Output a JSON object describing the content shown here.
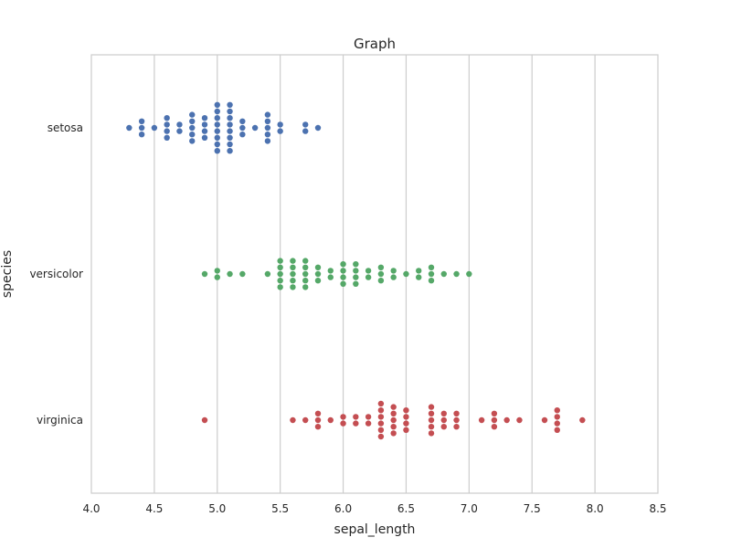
{
  "chart_data": {
    "type": "scatter",
    "subtype": "swarm",
    "title": "Graph",
    "xlabel": "sepal_length",
    "ylabel": "species",
    "xlim": [
      4.0,
      8.5
    ],
    "xticks": [
      "4.0",
      "4.5",
      "5.0",
      "5.5",
      "6.0",
      "6.5",
      "7.0",
      "7.5",
      "8.0",
      "8.5"
    ],
    "categories": [
      "setosa",
      "versicolor",
      "virginica"
    ],
    "grid": "vertical",
    "legend": "none",
    "series": [
      {
        "category": "setosa",
        "color": "#4c72b0",
        "values": [
          [
            4.3,
            1
          ],
          [
            4.4,
            3
          ],
          [
            4.5,
            1
          ],
          [
            4.6,
            4
          ],
          [
            4.7,
            2
          ],
          [
            4.8,
            5
          ],
          [
            4.9,
            4
          ],
          [
            5.0,
            8
          ],
          [
            5.1,
            8
          ],
          [
            5.2,
            3
          ],
          [
            5.3,
            1
          ],
          [
            5.4,
            5
          ],
          [
            5.5,
            2
          ],
          [
            5.7,
            2
          ],
          [
            5.8,
            1
          ]
        ]
      },
      {
        "category": "versicolor",
        "color": "#55a868",
        "values": [
          [
            4.9,
            1
          ],
          [
            5.0,
            2
          ],
          [
            5.1,
            1
          ],
          [
            5.2,
            1
          ],
          [
            5.4,
            1
          ],
          [
            5.5,
            5
          ],
          [
            5.6,
            5
          ],
          [
            5.7,
            5
          ],
          [
            5.8,
            3
          ],
          [
            5.9,
            2
          ],
          [
            6.0,
            4
          ],
          [
            6.1,
            4
          ],
          [
            6.2,
            2
          ],
          [
            6.3,
            3
          ],
          [
            6.4,
            2
          ],
          [
            6.5,
            1
          ],
          [
            6.6,
            2
          ],
          [
            6.7,
            3
          ],
          [
            6.8,
            1
          ],
          [
            6.9,
            1
          ],
          [
            7.0,
            1
          ]
        ]
      },
      {
        "category": "virginica",
        "color": "#c44e52",
        "values": [
          [
            4.9,
            1
          ],
          [
            5.6,
            1
          ],
          [
            5.7,
            1
          ],
          [
            5.8,
            3
          ],
          [
            5.9,
            1
          ],
          [
            6.0,
            2
          ],
          [
            6.1,
            2
          ],
          [
            6.2,
            2
          ],
          [
            6.3,
            6
          ],
          [
            6.4,
            5
          ],
          [
            6.5,
            4
          ],
          [
            6.7,
            5
          ],
          [
            6.8,
            3
          ],
          [
            6.9,
            3
          ],
          [
            7.1,
            1
          ],
          [
            7.2,
            3
          ],
          [
            7.3,
            1
          ],
          [
            7.4,
            1
          ],
          [
            7.6,
            1
          ],
          [
            7.7,
            4
          ],
          [
            7.9,
            1
          ]
        ]
      }
    ]
  }
}
